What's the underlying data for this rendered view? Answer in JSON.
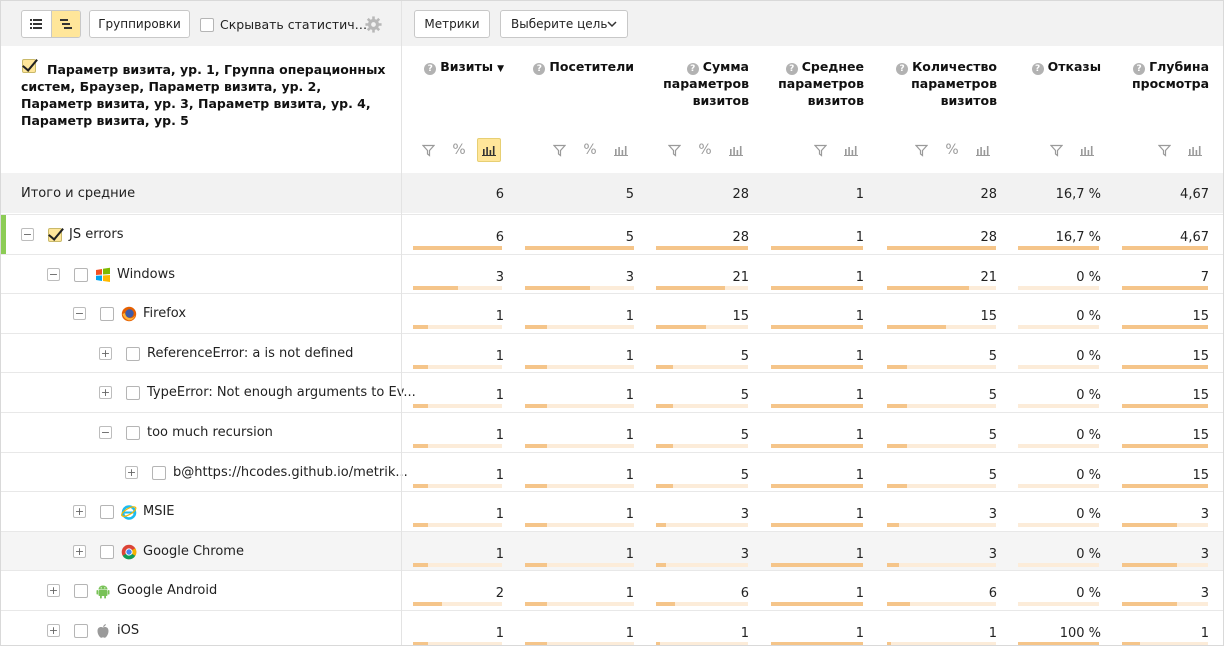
{
  "toolbar": {
    "groupings_label": "Группировки",
    "hide_stats_label": "Скрывать статистич…",
    "metrics_label": "Метрики",
    "goal_label": "Выберите цель"
  },
  "dimension_header": "Параметр визита, ур. 1, Группа операционных систем, Браузер, Параметр визита, ур. 2, Параметр визита, ур. 3, Параметр визита, ур. 4, Параметр визита, ур. 5",
  "columns": [
    {
      "id": "visits",
      "title_lines": [
        "Визиты"
      ],
      "sort_mark": "▼",
      "has_pct": true,
      "bar_active": true
    },
    {
      "id": "visitors",
      "title_lines": [
        "Посетители"
      ],
      "sort_mark": "",
      "has_pct": true,
      "bar_active": false
    },
    {
      "id": "sum_params",
      "title_lines": [
        "Сумма",
        "параметров",
        "визитов"
      ],
      "sort_mark": "",
      "has_pct": true,
      "bar_active": false
    },
    {
      "id": "avg_params",
      "title_lines": [
        "Среднее",
        "параметров",
        "визитов"
      ],
      "sort_mark": "",
      "has_pct": false,
      "bar_active": false
    },
    {
      "id": "count_params",
      "title_lines": [
        "Количество",
        "параметров",
        "визитов"
      ],
      "sort_mark": "",
      "has_pct": true,
      "bar_active": false
    },
    {
      "id": "bounces",
      "title_lines": [
        "Отказы"
      ],
      "sort_mark": "",
      "has_pct": false,
      "bar_active": false
    },
    {
      "id": "depth",
      "title_lines": [
        "Глубина",
        "просмотра"
      ],
      "sort_mark": "",
      "has_pct": false,
      "bar_active": false
    }
  ],
  "totals": {
    "label": "Итого и средние",
    "values": [
      "6",
      "5",
      "28",
      "1",
      "28",
      "16,7 %",
      "4,67"
    ]
  },
  "rows": [
    {
      "label": "JS errors",
      "level": 0,
      "toggle": "−",
      "checked": true,
      "icon": "",
      "highlight": false,
      "accent": true,
      "values": [
        "6",
        "5",
        "28",
        "1",
        "28",
        "16,7 %",
        "4,67"
      ],
      "bars": [
        1,
        1,
        1,
        1,
        1,
        1,
        1
      ]
    },
    {
      "label": "Windows",
      "level": 1,
      "toggle": "−",
      "checked": false,
      "icon": "windows-icon",
      "highlight": false,
      "accent": false,
      "values": [
        "3",
        "3",
        "21",
        "1",
        "21",
        "0 %",
        "7"
      ],
      "bars": [
        0.5,
        0.6,
        0.75,
        1,
        0.75,
        0,
        1
      ]
    },
    {
      "label": "Firefox",
      "level": 2,
      "toggle": "−",
      "checked": false,
      "icon": "firefox-icon",
      "highlight": false,
      "accent": false,
      "values": [
        "1",
        "1",
        "15",
        "1",
        "15",
        "0 %",
        "15"
      ],
      "bars": [
        0.17,
        0.2,
        0.54,
        1,
        0.54,
        0,
        1
      ]
    },
    {
      "label": "ReferenceError: a is not defined",
      "level": 3,
      "toggle": "+",
      "checked": false,
      "icon": "",
      "highlight": false,
      "accent": false,
      "values": [
        "1",
        "1",
        "5",
        "1",
        "5",
        "0 %",
        "15"
      ],
      "bars": [
        0.17,
        0.2,
        0.18,
        1,
        0.18,
        0,
        1
      ]
    },
    {
      "label": "TypeError: Not enough arguments to Ev...",
      "level": 3,
      "toggle": "+",
      "checked": false,
      "icon": "",
      "highlight": false,
      "accent": false,
      "values": [
        "1",
        "1",
        "5",
        "1",
        "5",
        "0 %",
        "15"
      ],
      "bars": [
        0.17,
        0.2,
        0.18,
        1,
        0.18,
        0,
        1
      ]
    },
    {
      "label": "too much recursion",
      "level": 3,
      "toggle": "−",
      "checked": false,
      "icon": "",
      "highlight": false,
      "accent": false,
      "values": [
        "1",
        "1",
        "5",
        "1",
        "5",
        "0 %",
        "15"
      ],
      "bars": [
        0.17,
        0.2,
        0.18,
        1,
        0.18,
        0,
        1
      ]
    },
    {
      "label": "b@https://hcodes.github.io/metrik...",
      "level": 4,
      "toggle": "+",
      "checked": false,
      "icon": "",
      "highlight": false,
      "accent": false,
      "values": [
        "1",
        "1",
        "5",
        "1",
        "5",
        "0 %",
        "15"
      ],
      "bars": [
        0.17,
        0.2,
        0.18,
        1,
        0.18,
        0,
        1
      ]
    },
    {
      "label": "MSIE",
      "level": 2,
      "toggle": "+",
      "checked": false,
      "icon": "ie-icon",
      "highlight": false,
      "accent": false,
      "values": [
        "1",
        "1",
        "3",
        "1",
        "3",
        "0 %",
        "3"
      ],
      "bars": [
        0.17,
        0.2,
        0.11,
        1,
        0.11,
        0,
        0.64
      ]
    },
    {
      "label": "Google Chrome",
      "level": 2,
      "toggle": "+",
      "checked": false,
      "icon": "chrome-icon",
      "highlight": true,
      "accent": false,
      "values": [
        "1",
        "1",
        "3",
        "1",
        "3",
        "0 %",
        "3"
      ],
      "bars": [
        0.17,
        0.2,
        0.11,
        1,
        0.11,
        0,
        0.64
      ]
    },
    {
      "label": "Google Android",
      "level": 1,
      "toggle": "+",
      "checked": false,
      "icon": "android-icon",
      "highlight": false,
      "accent": false,
      "values": [
        "2",
        "1",
        "6",
        "1",
        "6",
        "0 %",
        "3"
      ],
      "bars": [
        0.33,
        0.2,
        0.21,
        1,
        0.21,
        0,
        0.64
      ]
    },
    {
      "label": "iOS",
      "level": 1,
      "toggle": "+",
      "checked": false,
      "icon": "apple-icon",
      "highlight": false,
      "accent": false,
      "values": [
        "1",
        "1",
        "1",
        "1",
        "1",
        "100 %",
        "1"
      ],
      "bars": [
        0.17,
        0.2,
        0.04,
        1,
        0.04,
        1,
        0.21
      ]
    }
  ]
}
